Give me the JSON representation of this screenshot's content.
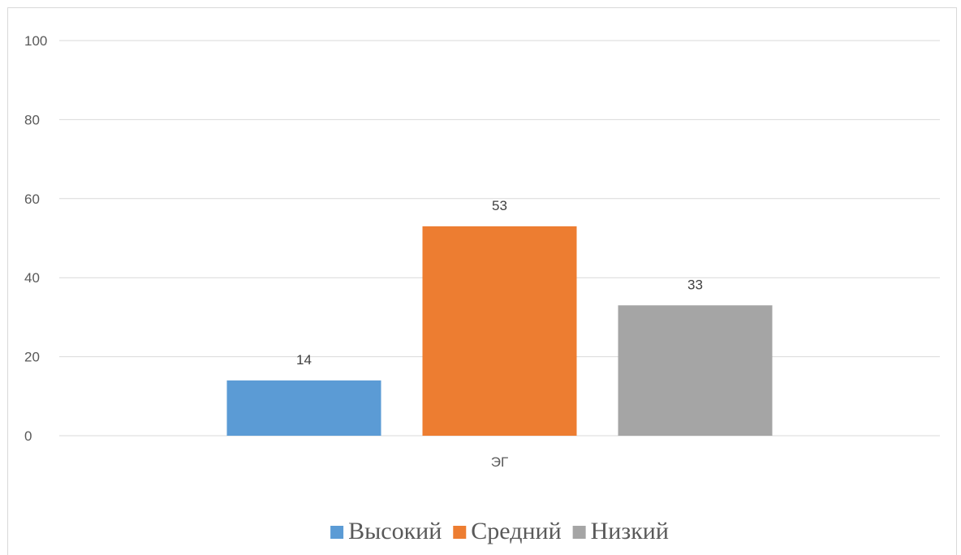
{
  "chart_data": {
    "type": "bar",
    "categories": [
      "ЭГ"
    ],
    "series": [
      {
        "name": "Высокий",
        "values": [
          14
        ],
        "color": "#5b9bd5"
      },
      {
        "name": "Средний",
        "values": [
          53
        ],
        "color": "#ed7d31"
      },
      {
        "name": "Низкий",
        "values": [
          33
        ],
        "color": "#a5a5a5"
      }
    ],
    "ylim": [
      0,
      100
    ],
    "yticks": [
      "0",
      "20",
      "40",
      "60",
      "80",
      "100"
    ],
    "grid": true,
    "legend_position": "bottom"
  }
}
